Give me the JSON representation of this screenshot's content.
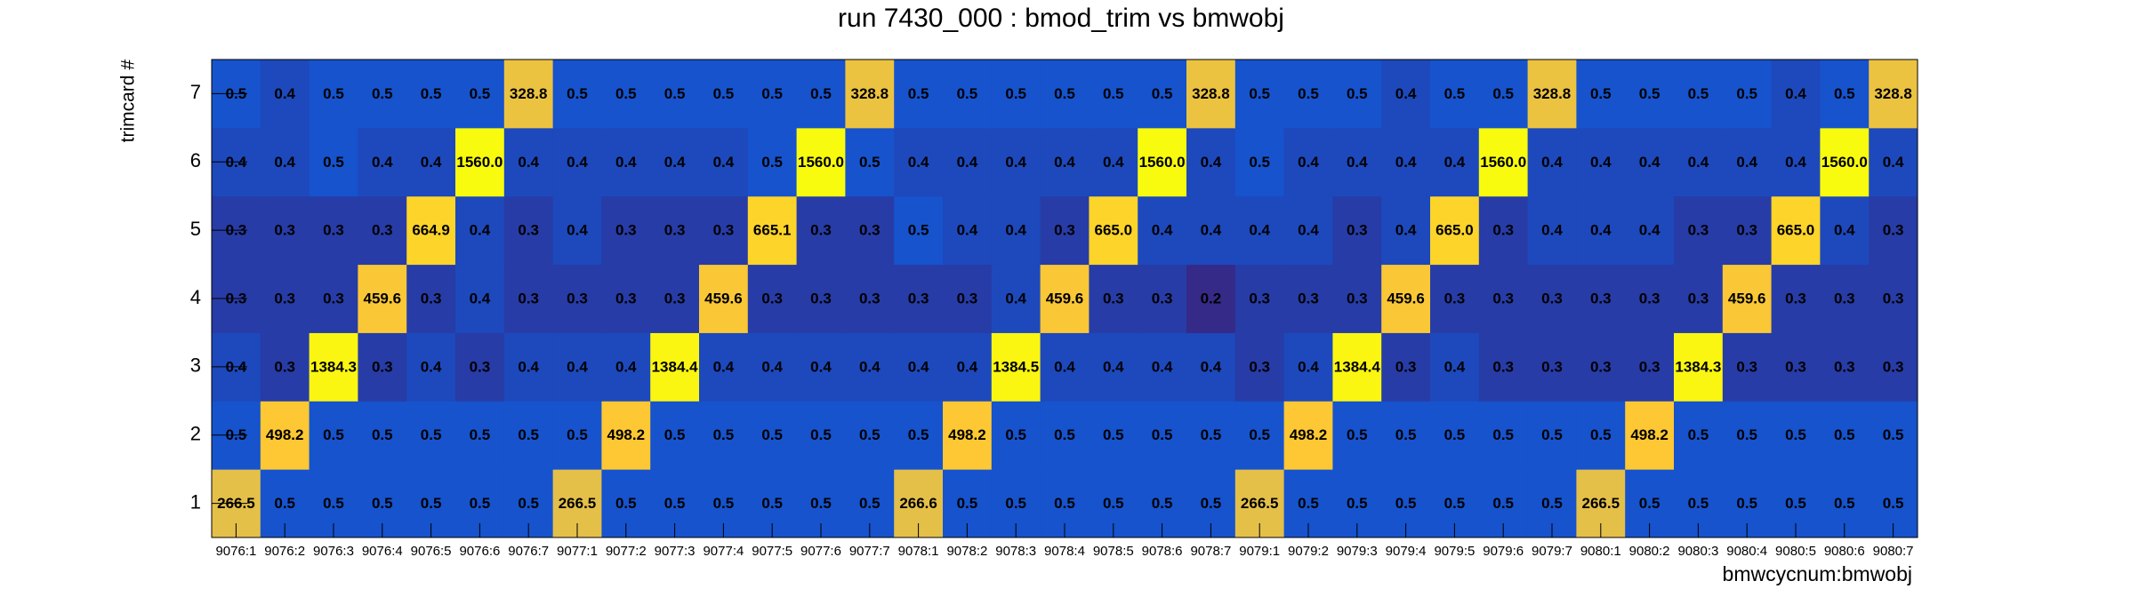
{
  "chart_data": {
    "type": "heatmap",
    "title": "run 7430_000 : bmod_trim vs bmwobj",
    "x_label": "bmwcycnum:bmwobj",
    "y_label": "trimcard #",
    "zlog": true,
    "palette": [
      "#352a87",
      "#0f5cdd",
      "#1481d6",
      "#06a4ca",
      "#2eb7a4",
      "#87bf77",
      "#d1bb59",
      "#fec832",
      "#f9fb0e"
    ],
    "categories": [
      "9076:1",
      "9076:2",
      "9076:3",
      "9076:4",
      "9076:5",
      "9076:6",
      "9076:7",
      "9077:1",
      "9077:2",
      "9077:3",
      "9077:4",
      "9077:5",
      "9077:6",
      "9077:7",
      "9078:1",
      "9078:2",
      "9078:3",
      "9078:4",
      "9078:5",
      "9078:6",
      "9078:7",
      "9079:1",
      "9079:2",
      "9079:3",
      "9079:4",
      "9079:5",
      "9079:6",
      "9079:7",
      "9080:1",
      "9080:2",
      "9080:3",
      "9080:4",
      "9080:5",
      "9080:6",
      "9080:7"
    ],
    "y_categories": [
      "1",
      "2",
      "3",
      "4",
      "5",
      "6",
      "7"
    ],
    "values": [
      [
        266.5,
        0.5,
        0.5,
        0.5,
        0.5,
        0.5,
        0.5,
        266.5,
        0.5,
        0.5,
        0.5,
        0.5,
        0.5,
        0.5,
        266.6,
        0.5,
        0.5,
        0.5,
        0.5,
        0.5,
        0.5,
        266.5,
        0.5,
        0.5,
        0.5,
        0.5,
        0.5,
        0.5,
        266.5,
        0.5,
        0.5,
        0.5,
        0.5,
        0.5,
        0.5
      ],
      [
        0.5,
        498.2,
        0.5,
        0.5,
        0.5,
        0.5,
        0.5,
        0.5,
        498.2,
        0.5,
        0.5,
        0.5,
        0.5,
        0.5,
        0.5,
        498.2,
        0.5,
        0.5,
        0.5,
        0.5,
        0.5,
        0.5,
        498.2,
        0.5,
        0.5,
        0.5,
        0.5,
        0.5,
        0.5,
        498.2,
        0.5,
        0.5,
        0.5,
        0.5,
        0.5
      ],
      [
        0.4,
        0.3,
        1384.3,
        0.3,
        0.4,
        0.3,
        0.4,
        0.4,
        0.4,
        1384.4,
        0.4,
        0.4,
        0.4,
        0.4,
        0.4,
        0.4,
        1384.5,
        0.4,
        0.4,
        0.4,
        0.4,
        0.3,
        0.4,
        1384.4,
        0.3,
        0.4,
        0.3,
        0.3,
        0.3,
        0.3,
        1384.3,
        0.3,
        0.3,
        0.3,
        0.3
      ],
      [
        0.3,
        0.3,
        0.3,
        459.6,
        0.3,
        0.4,
        0.3,
        0.3,
        0.3,
        0.3,
        459.6,
        0.3,
        0.3,
        0.3,
        0.3,
        0.3,
        0.4,
        459.6,
        0.3,
        0.3,
        0.2,
        0.3,
        0.3,
        0.3,
        459.6,
        0.3,
        0.3,
        0.3,
        0.3,
        0.3,
        0.3,
        459.6,
        0.3,
        0.3,
        0.3
      ],
      [
        0.3,
        0.3,
        0.3,
        0.3,
        664.9,
        0.4,
        0.3,
        0.4,
        0.3,
        0.3,
        0.3,
        665.1,
        0.3,
        0.3,
        0.5,
        0.4,
        0.4,
        0.3,
        665.0,
        0.4,
        0.4,
        0.4,
        0.4,
        0.3,
        0.4,
        665.0,
        0.3,
        0.4,
        0.4,
        0.4,
        0.3,
        0.3,
        665.0,
        0.4,
        0.3
      ],
      [
        0.4,
        0.4,
        0.5,
        0.4,
        0.4,
        1560.0,
        0.4,
        0.4,
        0.4,
        0.4,
        0.4,
        0.5,
        1560.0,
        0.5,
        0.4,
        0.4,
        0.4,
        0.4,
        0.4,
        1560.0,
        0.4,
        0.5,
        0.4,
        0.4,
        0.4,
        0.4,
        1560.0,
        0.4,
        0.4,
        0.4,
        0.4,
        0.4,
        0.4,
        1560.0,
        0.4
      ],
      [
        0.5,
        0.4,
        0.5,
        0.5,
        0.5,
        0.5,
        328.8,
        0.5,
        0.5,
        0.5,
        0.5,
        0.5,
        0.5,
        328.8,
        0.5,
        0.5,
        0.5,
        0.5,
        0.5,
        0.5,
        328.8,
        0.5,
        0.5,
        0.5,
        0.4,
        0.5,
        0.5,
        328.8,
        0.5,
        0.5,
        0.5,
        0.5,
        0.4,
        0.5,
        328.8
      ]
    ],
    "value_labels": [
      [
        "266.5",
        "0.5",
        "0.5",
        "0.5",
        "0.5",
        "0.5",
        "0.5",
        "266.5",
        "0.5",
        "0.5",
        "0.5",
        "0.5",
        "0.5",
        "0.5",
        "266.6",
        "0.5",
        "0.5",
        "0.5",
        "0.5",
        "0.5",
        "0.5",
        "266.5",
        "0.5",
        "0.5",
        "0.5",
        "0.5",
        "0.5",
        "0.5",
        "266.5",
        "0.5",
        "0.5",
        "0.5",
        "0.5",
        "0.5",
        "0.5"
      ],
      [
        "0.5",
        "498.2",
        "0.5",
        "0.5",
        "0.5",
        "0.5",
        "0.5",
        "0.5",
        "498.2",
        "0.5",
        "0.5",
        "0.5",
        "0.5",
        "0.5",
        "0.5",
        "498.2",
        "0.5",
        "0.5",
        "0.5",
        "0.5",
        "0.5",
        "0.5",
        "498.2",
        "0.5",
        "0.5",
        "0.5",
        "0.5",
        "0.5",
        "0.5",
        "498.2",
        "0.5",
        "0.5",
        "0.5",
        "0.5",
        "0.5"
      ],
      [
        "0.4",
        "0.3",
        "1384.3",
        "0.3",
        "0.4",
        "0.3",
        "0.4",
        "0.4",
        "0.4",
        "1384.4",
        "0.4",
        "0.4",
        "0.4",
        "0.4",
        "0.4",
        "0.4",
        "1384.5",
        "0.4",
        "0.4",
        "0.4",
        "0.4",
        "0.3",
        "0.4",
        "1384.4",
        "0.3",
        "0.4",
        "0.3",
        "0.3",
        "0.3",
        "0.3",
        "1384.3",
        "0.3",
        "0.3",
        "0.3",
        "0.3"
      ],
      [
        "0.3",
        "0.3",
        "0.3",
        "459.6",
        "0.3",
        "0.4",
        "0.3",
        "0.3",
        "0.3",
        "0.3",
        "459.6",
        "0.3",
        "0.3",
        "0.3",
        "0.3",
        "0.3",
        "0.4",
        "459.6",
        "0.3",
        "0.3",
        "0.2",
        "0.3",
        "0.3",
        "0.3",
        "459.6",
        "0.3",
        "0.3",
        "0.3",
        "0.3",
        "0.3",
        "0.3",
        "459.6",
        "0.3",
        "0.3",
        "0.3"
      ],
      [
        "0.3",
        "0.3",
        "0.3",
        "0.3",
        "664.9",
        "0.4",
        "0.3",
        "0.4",
        "0.3",
        "0.3",
        "0.3",
        "665.1",
        "0.3",
        "0.3",
        "0.5",
        "0.4",
        "0.4",
        "0.3",
        "665.0",
        "0.4",
        "0.4",
        "0.4",
        "0.4",
        "0.3",
        "0.4",
        "665.0",
        "0.3",
        "0.4",
        "0.4",
        "0.4",
        "0.3",
        "0.3",
        "665.0",
        "0.4",
        "0.3"
      ],
      [
        "0.4",
        "0.4",
        "0.5",
        "0.4",
        "0.4",
        "1560.0",
        "0.4",
        "0.4",
        "0.4",
        "0.4",
        "0.4",
        "0.5",
        "1560.0",
        "0.5",
        "0.4",
        "0.4",
        "0.4",
        "0.4",
        "0.4",
        "1560.0",
        "0.4",
        "0.5",
        "0.4",
        "0.4",
        "0.4",
        "0.4",
        "1560.0",
        "0.4",
        "0.4",
        "0.4",
        "0.4",
        "0.4",
        "0.4",
        "1560.0",
        "0.4"
      ],
      [
        "0.5",
        "0.4",
        "0.5",
        "0.5",
        "0.5",
        "0.5",
        "328.8",
        "0.5",
        "0.5",
        "0.5",
        "0.5",
        "0.5",
        "0.5",
        "328.8",
        "0.5",
        "0.5",
        "0.5",
        "0.5",
        "0.5",
        "0.5",
        "328.8",
        "0.5",
        "0.5",
        "0.5",
        "0.4",
        "0.5",
        "0.5",
        "328.8",
        "0.5",
        "0.5",
        "0.5",
        "0.5",
        "0.4",
        "0.5",
        "328.8"
      ]
    ]
  }
}
